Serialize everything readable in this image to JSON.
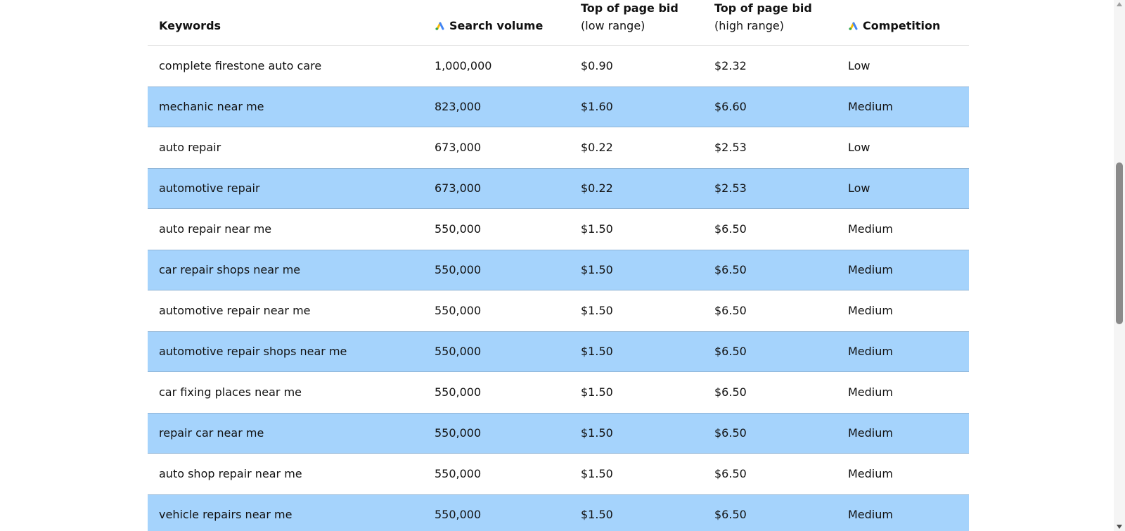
{
  "table": {
    "headers": {
      "keywords": "Keywords",
      "search_volume": "Search volume",
      "bid_low_title": "Top of page bid",
      "bid_low_sub": "(low range)",
      "bid_high_title": "Top of page bid",
      "bid_high_sub": "(high range)",
      "competition": "Competition"
    },
    "logo_icon": "google-ads-logo-icon",
    "row_shade_color": "#a5d3fc",
    "rows": [
      {
        "keyword": "complete firestone auto care",
        "volume": "1,000,000",
        "bid_low": "$0.90",
        "bid_high": "$2.32",
        "competition": "Low"
      },
      {
        "keyword": "mechanic near me",
        "volume": "823,000",
        "bid_low": "$1.60",
        "bid_high": "$6.60",
        "competition": "Medium"
      },
      {
        "keyword": "auto repair",
        "volume": "673,000",
        "bid_low": "$0.22",
        "bid_high": "$2.53",
        "competition": "Low"
      },
      {
        "keyword": "automotive repair",
        "volume": "673,000",
        "bid_low": "$0.22",
        "bid_high": "$2.53",
        "competition": "Low"
      },
      {
        "keyword": "auto repair near me",
        "volume": "550,000",
        "bid_low": "$1.50",
        "bid_high": "$6.50",
        "competition": "Medium"
      },
      {
        "keyword": "car repair shops near me",
        "volume": "550,000",
        "bid_low": "$1.50",
        "bid_high": "$6.50",
        "competition": "Medium"
      },
      {
        "keyword": "automotive repair near me",
        "volume": "550,000",
        "bid_low": "$1.50",
        "bid_high": "$6.50",
        "competition": "Medium"
      },
      {
        "keyword": "automotive repair shops near me",
        "volume": "550,000",
        "bid_low": "$1.50",
        "bid_high": "$6.50",
        "competition": "Medium"
      },
      {
        "keyword": "car fixing places near me",
        "volume": "550,000",
        "bid_low": "$1.50",
        "bid_high": "$6.50",
        "competition": "Medium"
      },
      {
        "keyword": "repair car near me",
        "volume": "550,000",
        "bid_low": "$1.50",
        "bid_high": "$6.50",
        "competition": "Medium"
      },
      {
        "keyword": "auto shop repair near me",
        "volume": "550,000",
        "bid_low": "$1.50",
        "bid_high": "$6.50",
        "competition": "Medium"
      },
      {
        "keyword": "vehicle repairs near me",
        "volume": "550,000",
        "bid_low": "$1.50",
        "bid_high": "$6.50",
        "competition": "Medium"
      }
    ]
  }
}
